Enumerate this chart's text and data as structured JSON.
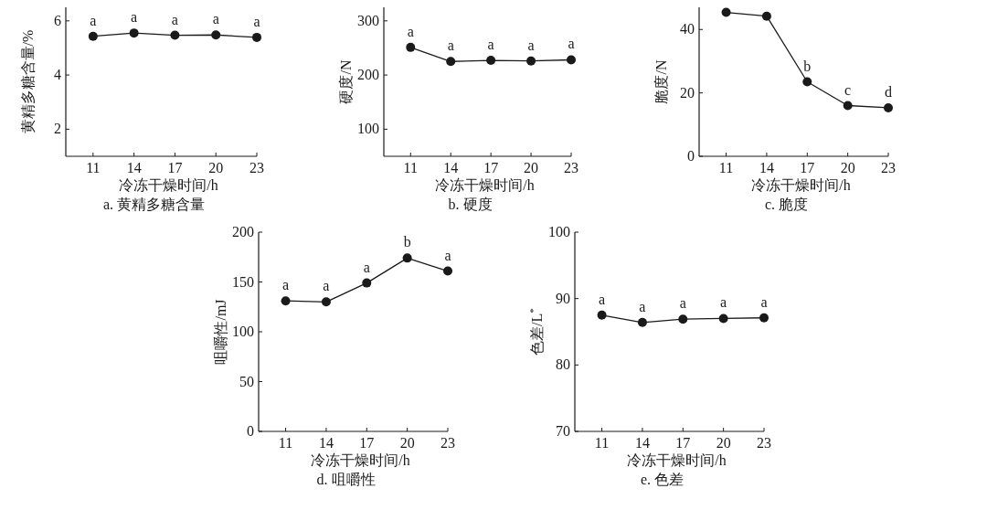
{
  "chart_data": [
    {
      "type": "line",
      "title": "a. 黄精多糖含量",
      "xlabel": "冷冻干燥时间/h",
      "ylabel": "黄精多糖含量/%",
      "x": [
        11,
        14,
        17,
        20,
        23
      ],
      "values": [
        5.43,
        5.55,
        5.47,
        5.48,
        5.39
      ],
      "color": "#1a1a1a",
      "marker": "circle",
      "xlim": [
        9,
        23
      ],
      "ylim": [
        1,
        6.5
      ],
      "xticks": [
        11,
        14,
        17,
        20,
        23
      ],
      "yticks": [
        2,
        4,
        6
      ],
      "annotations": [
        {
          "text": "a",
          "x": 11,
          "y": 5.43
        },
        {
          "text": "a",
          "x": 14,
          "y": 5.55
        },
        {
          "text": "a",
          "x": 17,
          "y": 5.47
        },
        {
          "text": "a",
          "x": 20,
          "y": 5.48
        },
        {
          "text": "a",
          "x": 23,
          "y": 5.39
        }
      ]
    },
    {
      "type": "line",
      "title": "b. 硬度",
      "xlabel": "冷冻干燥时间/h",
      "ylabel": "硬度/N",
      "x": [
        11,
        14,
        17,
        20,
        23
      ],
      "values": [
        251,
        225,
        227,
        226,
        228
      ],
      "color": "#1a1a1a",
      "marker": "circle",
      "xlim": [
        9,
        23
      ],
      "ylim": [
        50,
        325
      ],
      "xticks": [
        11,
        14,
        17,
        20,
        23
      ],
      "yticks": [
        100,
        200,
        300
      ],
      "annotations": [
        {
          "text": "a",
          "x": 11,
          "y": 251
        },
        {
          "text": "a",
          "x": 14,
          "y": 225
        },
        {
          "text": "a",
          "x": 17,
          "y": 227
        },
        {
          "text": "a",
          "x": 20,
          "y": 226
        },
        {
          "text": "a",
          "x": 23,
          "y": 228
        }
      ]
    },
    {
      "type": "line",
      "title": "c. 脆度",
      "xlabel": "冷冻干燥时间/h",
      "ylabel": "脆度/N",
      "x": [
        11,
        14,
        17,
        20,
        23
      ],
      "values": [
        45.4,
        44.2,
        23.5,
        16,
        15.3
      ],
      "color": "#1a1a1a",
      "marker": "circle",
      "xlim": [
        9,
        23
      ],
      "ylim": [
        0,
        47
      ],
      "xticks": [
        11,
        14,
        17,
        20,
        23
      ],
      "yticks": [
        0,
        20,
        40
      ],
      "annotations": [
        {
          "text": "b",
          "x": 17,
          "y": 23.5
        },
        {
          "text": "c",
          "x": 20,
          "y": 16
        },
        {
          "text": "d",
          "x": 23,
          "y": 15.3
        }
      ]
    },
    {
      "type": "line",
      "title": "d. 咀嚼性",
      "xlabel": "冷冻干燥时间/h",
      "ylabel": "咀嚼性/mJ",
      "x": [
        11,
        14,
        17,
        20,
        23
      ],
      "values": [
        131,
        130,
        149,
        174,
        161
      ],
      "color": "#1a1a1a",
      "marker": "circle",
      "xlim": [
        9,
        23
      ],
      "ylim": [
        0,
        200
      ],
      "xticks": [
        11,
        14,
        17,
        20,
        23
      ],
      "yticks": [
        0,
        50,
        100,
        150,
        200
      ],
      "annotations": [
        {
          "text": "a",
          "x": 11,
          "y": 131
        },
        {
          "text": "a",
          "x": 14,
          "y": 130
        },
        {
          "text": "a",
          "x": 17,
          "y": 149
        },
        {
          "text": "b",
          "x": 20,
          "y": 174
        },
        {
          "text": "a",
          "x": 23,
          "y": 161
        }
      ]
    },
    {
      "type": "line",
      "title": "e. 色差",
      "xlabel": "冷冻干燥时间/h",
      "ylabel": "色差/L$^{*}$",
      "x": [
        11,
        14,
        17,
        20,
        23
      ],
      "values": [
        87.5,
        86.4,
        86.9,
        87.0,
        87.1
      ],
      "color": "#1a1a1a",
      "marker": "circle",
      "xlim": [
        9,
        23
      ],
      "ylim": [
        70,
        100
      ],
      "xticks": [
        11,
        14,
        17,
        20,
        23
      ],
      "yticks": [
        70,
        80,
        90,
        100
      ],
      "annotations": [
        {
          "text": "a",
          "x": 11,
          "y": 87.5
        },
        {
          "text": "a",
          "x": 14,
          "y": 86.4
        },
        {
          "text": "a",
          "x": 17,
          "y": 86.9
        },
        {
          "text": "a",
          "x": 20,
          "y": 87.0
        },
        {
          "text": "a",
          "x": 23,
          "y": 87.1
        }
      ]
    }
  ]
}
